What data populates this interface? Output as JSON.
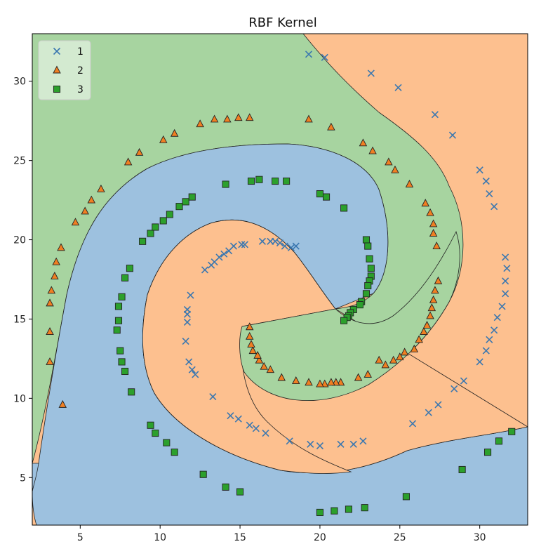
{
  "chart_data": {
    "type": "scatter",
    "title": "RBF Kernel",
    "xlabel": "",
    "ylabel": "",
    "xlim": [
      2,
      33
    ],
    "ylim": [
      2,
      33
    ],
    "xticks": [
      5,
      10,
      15,
      20,
      25,
      30
    ],
    "yticks": [
      5,
      10,
      15,
      20,
      25,
      30
    ],
    "grid": false,
    "legend_position": "top-left",
    "series": [
      {
        "name": "1",
        "marker": "x",
        "color": "#3a77b0",
        "points": [
          [
            19.3,
            31.7
          ],
          [
            20.3,
            31.5
          ],
          [
            23.2,
            30.5
          ],
          [
            24.9,
            29.6
          ],
          [
            27.2,
            27.9
          ],
          [
            28.3,
            26.6
          ],
          [
            30.0,
            24.4
          ],
          [
            30.4,
            23.7
          ],
          [
            30.6,
            22.9
          ],
          [
            30.9,
            22.1
          ],
          [
            31.6,
            18.9
          ],
          [
            31.7,
            18.2
          ],
          [
            31.6,
            17.4
          ],
          [
            31.6,
            16.6
          ],
          [
            31.4,
            15.8
          ],
          [
            31.1,
            15.1
          ],
          [
            30.9,
            14.3
          ],
          [
            30.6,
            13.7
          ],
          [
            30.4,
            13.0
          ],
          [
            30.0,
            12.3
          ],
          [
            29.0,
            11.1
          ],
          [
            28.4,
            10.6
          ],
          [
            27.4,
            9.6
          ],
          [
            26.8,
            9.1
          ],
          [
            25.8,
            8.4
          ],
          [
            22.7,
            7.3
          ],
          [
            22.1,
            7.1
          ],
          [
            21.3,
            7.1
          ],
          [
            20.0,
            7.0
          ],
          [
            19.4,
            7.1
          ],
          [
            18.1,
            7.3
          ],
          [
            16.6,
            7.8
          ],
          [
            16.0,
            8.1
          ],
          [
            15.6,
            8.3
          ],
          [
            14.9,
            8.7
          ],
          [
            14.4,
            8.9
          ],
          [
            13.3,
            10.1
          ],
          [
            12.2,
            11.5
          ],
          [
            12.0,
            11.8
          ],
          [
            11.8,
            12.3
          ],
          [
            11.6,
            13.6
          ],
          [
            11.7,
            14.8
          ],
          [
            11.7,
            15.3
          ],
          [
            11.7,
            15.6
          ],
          [
            11.9,
            16.5
          ],
          [
            12.8,
            18.1
          ],
          [
            13.2,
            18.4
          ],
          [
            13.4,
            18.6
          ],
          [
            13.7,
            18.9
          ],
          [
            14.0,
            19.1
          ],
          [
            14.3,
            19.3
          ],
          [
            14.6,
            19.6
          ],
          [
            15.1,
            19.7
          ],
          [
            15.3,
            19.7
          ],
          [
            16.4,
            19.9
          ],
          [
            16.9,
            19.9
          ],
          [
            17.2,
            19.9
          ],
          [
            17.5,
            19.8
          ],
          [
            17.8,
            19.6
          ],
          [
            18.2,
            19.5
          ],
          [
            18.5,
            19.6
          ]
        ]
      },
      {
        "name": "2",
        "marker": "^",
        "color": "#f07f22",
        "points": [
          [
            3.1,
            12.3
          ],
          [
            3.1,
            14.2
          ],
          [
            3.1,
            16.0
          ],
          [
            3.2,
            16.8
          ],
          [
            3.4,
            17.7
          ],
          [
            3.5,
            18.6
          ],
          [
            3.8,
            19.5
          ],
          [
            3.9,
            9.6
          ],
          [
            4.7,
            21.1
          ],
          [
            5.3,
            21.8
          ],
          [
            5.7,
            22.5
          ],
          [
            6.3,
            23.2
          ],
          [
            8.0,
            24.9
          ],
          [
            8.7,
            25.5
          ],
          [
            10.2,
            26.3
          ],
          [
            10.9,
            26.7
          ],
          [
            12.5,
            27.3
          ],
          [
            13.4,
            27.6
          ],
          [
            14.2,
            27.6
          ],
          [
            14.9,
            27.7
          ],
          [
            15.6,
            27.7
          ],
          [
            19.3,
            27.6
          ],
          [
            20.7,
            27.1
          ],
          [
            22.7,
            26.1
          ],
          [
            23.3,
            25.6
          ],
          [
            24.3,
            24.9
          ],
          [
            24.7,
            24.4
          ],
          [
            25.6,
            23.5
          ],
          [
            26.6,
            22.3
          ],
          [
            26.9,
            21.7
          ],
          [
            27.1,
            21.0
          ],
          [
            27.1,
            20.4
          ],
          [
            27.3,
            19.6
          ],
          [
            27.4,
            17.4
          ],
          [
            27.2,
            16.8
          ],
          [
            27.1,
            16.2
          ],
          [
            27.0,
            15.7
          ],
          [
            26.9,
            15.2
          ],
          [
            26.7,
            14.6
          ],
          [
            26.5,
            14.2
          ],
          [
            26.2,
            13.7
          ],
          [
            25.9,
            13.1
          ],
          [
            25.3,
            12.9
          ],
          [
            25.0,
            12.6
          ],
          [
            24.6,
            12.4
          ],
          [
            24.1,
            12.1
          ],
          [
            23.7,
            12.4
          ],
          [
            23.0,
            11.5
          ],
          [
            22.4,
            11.3
          ],
          [
            21.3,
            11.0
          ],
          [
            21.0,
            11.0
          ],
          [
            20.7,
            11.0
          ],
          [
            20.3,
            10.9
          ],
          [
            20.0,
            10.9
          ],
          [
            19.3,
            11.0
          ],
          [
            18.5,
            11.1
          ],
          [
            17.6,
            11.3
          ],
          [
            16.9,
            11.8
          ],
          [
            16.5,
            12.0
          ],
          [
            16.2,
            12.4
          ],
          [
            16.1,
            12.7
          ],
          [
            15.8,
            13.0
          ],
          [
            15.7,
            13.4
          ],
          [
            15.6,
            13.9
          ],
          [
            15.6,
            14.5
          ]
        ]
      },
      {
        "name": "3",
        "marker": "s",
        "color": "#2ca02c",
        "points": [
          [
            32.0,
            7.9
          ],
          [
            31.2,
            7.3
          ],
          [
            30.5,
            6.6
          ],
          [
            28.9,
            5.5
          ],
          [
            25.4,
            3.8
          ],
          [
            22.8,
            3.1
          ],
          [
            21.8,
            3.0
          ],
          [
            20.9,
            2.9
          ],
          [
            20.0,
            2.8
          ],
          [
            15.0,
            4.1
          ],
          [
            14.1,
            4.4
          ],
          [
            12.7,
            5.2
          ],
          [
            10.9,
            6.6
          ],
          [
            10.4,
            7.2
          ],
          [
            9.7,
            7.8
          ],
          [
            9.4,
            8.3
          ],
          [
            8.2,
            10.4
          ],
          [
            7.8,
            11.7
          ],
          [
            7.6,
            12.3
          ],
          [
            7.5,
            13.0
          ],
          [
            7.3,
            14.3
          ],
          [
            7.4,
            14.9
          ],
          [
            7.4,
            15.8
          ],
          [
            7.6,
            16.4
          ],
          [
            7.8,
            17.6
          ],
          [
            8.1,
            18.2
          ],
          [
            8.9,
            19.9
          ],
          [
            9.4,
            20.4
          ],
          [
            9.7,
            20.8
          ],
          [
            10.2,
            21.2
          ],
          [
            10.6,
            21.6
          ],
          [
            11.2,
            22.1
          ],
          [
            11.6,
            22.4
          ],
          [
            12.0,
            22.7
          ],
          [
            14.1,
            23.5
          ],
          [
            15.7,
            23.7
          ],
          [
            16.2,
            23.8
          ],
          [
            17.2,
            23.7
          ],
          [
            17.9,
            23.7
          ],
          [
            20.0,
            22.9
          ],
          [
            20.4,
            22.7
          ],
          [
            21.5,
            22.0
          ],
          [
            22.9,
            20.0
          ],
          [
            23.0,
            19.6
          ],
          [
            23.1,
            18.8
          ],
          [
            23.2,
            18.2
          ],
          [
            23.2,
            17.7
          ],
          [
            23.1,
            17.4
          ],
          [
            23.0,
            17.1
          ],
          [
            22.9,
            16.6
          ],
          [
            22.6,
            16.1
          ],
          [
            22.5,
            15.9
          ],
          [
            22.1,
            15.6
          ],
          [
            21.9,
            15.4
          ],
          [
            21.8,
            15.2
          ],
          [
            21.7,
            15.1
          ],
          [
            21.5,
            14.9
          ]
        ]
      }
    ],
    "regions": [
      {
        "class": "1",
        "color": "#9dc1df"
      },
      {
        "class": "2",
        "color": "#fdc08f"
      },
      {
        "class": "3",
        "color": "#a7d4a0"
      }
    ]
  }
}
